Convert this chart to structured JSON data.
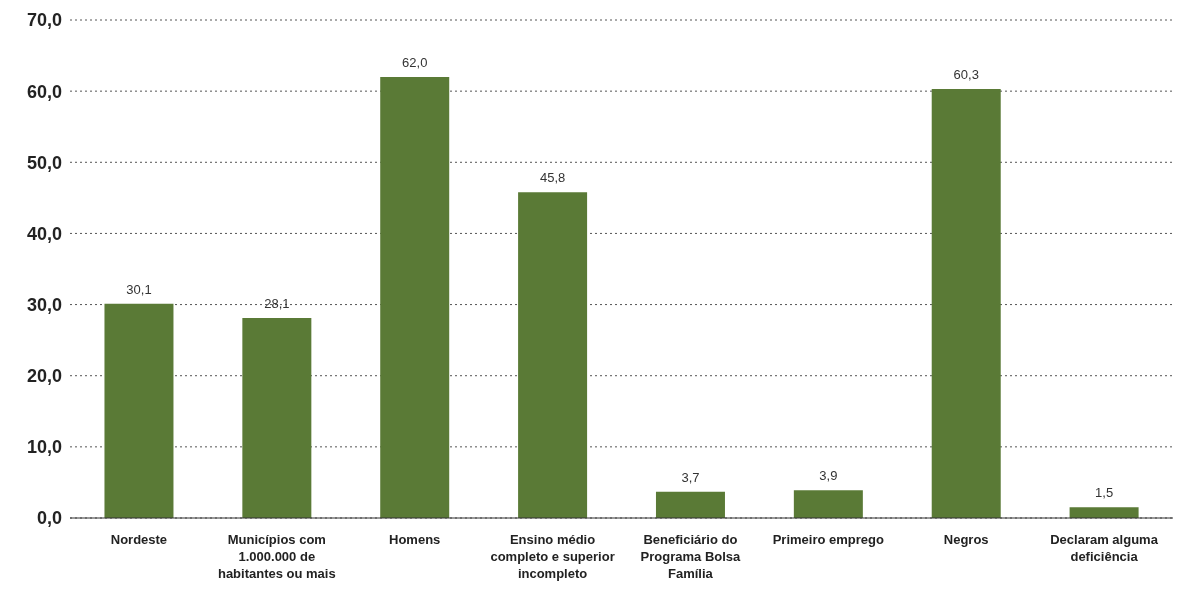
{
  "chart_data": {
    "type": "bar",
    "categories": [
      "Nordeste",
      "Municípios com 1.000.000 de habitantes ou mais",
      "Homens",
      "Ensino médio completo e superior incompleto",
      "Beneficiário do Programa Bolsa Família",
      "Primeiro emprego",
      "Negros",
      "Declaram alguma deficiência"
    ],
    "values": [
      30.1,
      28.1,
      62.0,
      45.8,
      3.7,
      3.9,
      60.3,
      1.5
    ],
    "value_labels": [
      "30,1",
      "28,1",
      "62,0",
      "45,8",
      "3,7",
      "3,9",
      "60,3",
      "1,5"
    ],
    "color": "#5a7a36",
    "ylim": [
      0,
      70
    ],
    "yticks": [
      {
        "value": 0,
        "label": "0,0"
      },
      {
        "value": 10,
        "label": "10,0"
      },
      {
        "value": 20,
        "label": "20,0"
      },
      {
        "value": 30,
        "label": "30,0"
      },
      {
        "value": 40,
        "label": "40,0"
      },
      {
        "value": 50,
        "label": "50,0"
      },
      {
        "value": 60,
        "label": "60,0"
      },
      {
        "value": 70,
        "label": "70,0"
      }
    ],
    "grid": "y"
  }
}
